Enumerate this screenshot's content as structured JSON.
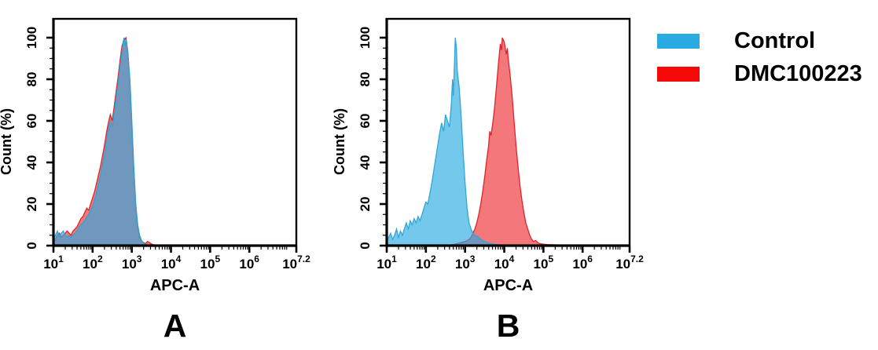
{
  "figure": {
    "panels": [
      {
        "id": "A",
        "label": "A",
        "xlabel": "APC-A",
        "ylabel": "Count (%)"
      },
      {
        "id": "B",
        "label": "B",
        "xlabel": "APC-A",
        "ylabel": "Count (%)"
      }
    ],
    "legend": {
      "items": [
        {
          "label": "Control",
          "color": "#29abe2"
        },
        {
          "label": "DMC100223",
          "color": "#f60909"
        }
      ]
    }
  },
  "chart_data": [
    {
      "type": "area",
      "panel": "A",
      "title": "",
      "xlabel": "APC-A",
      "ylabel": "Count (%)",
      "x_scale": "log10",
      "x_domain_exponents": [
        1,
        7.2
      ],
      "x_major_tick_exponents": [
        "1",
        "2",
        "3",
        "4",
        "5",
        "6",
        "7.2"
      ],
      "ylim": [
        0,
        100
      ],
      "y_ticks": [
        0,
        20,
        40,
        60,
        80,
        100
      ],
      "y_minor_step": 5,
      "grid": false,
      "legend_position": "outside-right",
      "series": [
        {
          "name": "DMC100223",
          "stroke": "#e01b22",
          "fill": "#ed1c24",
          "fill_opacity": 0.6,
          "points": [
            [
              1.0,
              2
            ],
            [
              1.05,
              3
            ],
            [
              1.1,
              5
            ],
            [
              1.15,
              6
            ],
            [
              1.2,
              4
            ],
            [
              1.25,
              5
            ],
            [
              1.3,
              6
            ],
            [
              1.35,
              7
            ],
            [
              1.4,
              6
            ],
            [
              1.45,
              5
            ],
            [
              1.5,
              7
            ],
            [
              1.55,
              8
            ],
            [
              1.6,
              9
            ],
            [
              1.65,
              11
            ],
            [
              1.7,
              13
            ],
            [
              1.75,
              14
            ],
            [
              1.8,
              16
            ],
            [
              1.85,
              18
            ],
            [
              1.9,
              17
            ],
            [
              1.95,
              20
            ],
            [
              2.0,
              23
            ],
            [
              2.05,
              26
            ],
            [
              2.1,
              30
            ],
            [
              2.15,
              34
            ],
            [
              2.2,
              38
            ],
            [
              2.25,
              43
            ],
            [
              2.3,
              48
            ],
            [
              2.35,
              54
            ],
            [
              2.4,
              59
            ],
            [
              2.45,
              63
            ],
            [
              2.5,
              60
            ],
            [
              2.55,
              67
            ],
            [
              2.6,
              74
            ],
            [
              2.65,
              81
            ],
            [
              2.7,
              89
            ],
            [
              2.75,
              96
            ],
            [
              2.8,
              99
            ],
            [
              2.85,
              100
            ],
            [
              2.9,
              93
            ],
            [
              2.95,
              79
            ],
            [
              3.0,
              58
            ],
            [
              3.05,
              36
            ],
            [
              3.1,
              19
            ],
            [
              3.15,
              9
            ],
            [
              3.2,
              4
            ],
            [
              3.25,
              2
            ],
            [
              3.3,
              1.5
            ],
            [
              3.35,
              1
            ],
            [
              3.4,
              2
            ],
            [
              3.45,
              1.5
            ],
            [
              3.5,
              0.8
            ],
            [
              3.55,
              0.4
            ],
            [
              3.6,
              0.3
            ],
            [
              3.7,
              0.2
            ],
            [
              3.8,
              0.1
            ],
            [
              3.9,
              0
            ]
          ]
        },
        {
          "name": "Control",
          "stroke": "#2ba3d4",
          "fill": "#29abe2",
          "fill_opacity": 0.65,
          "points": [
            [
              1.0,
              3
            ],
            [
              1.05,
              5
            ],
            [
              1.1,
              7
            ],
            [
              1.15,
              4
            ],
            [
              1.2,
              6
            ],
            [
              1.25,
              7
            ],
            [
              1.3,
              5
            ],
            [
              1.35,
              4
            ],
            [
              1.4,
              5
            ],
            [
              1.45,
              4
            ],
            [
              1.5,
              5
            ],
            [
              1.55,
              6
            ],
            [
              1.6,
              7
            ],
            [
              1.65,
              9
            ],
            [
              1.7,
              10
            ],
            [
              1.75,
              11
            ],
            [
              1.8,
              12
            ],
            [
              1.85,
              14
            ],
            [
              1.9,
              15
            ],
            [
              1.95,
              17
            ],
            [
              2.0,
              19
            ],
            [
              2.05,
              22
            ],
            [
              2.1,
              26
            ],
            [
              2.15,
              30
            ],
            [
              2.2,
              34
            ],
            [
              2.25,
              39
            ],
            [
              2.3,
              44
            ],
            [
              2.35,
              50
            ],
            [
              2.4,
              56
            ],
            [
              2.45,
              60
            ],
            [
              2.5,
              57
            ],
            [
              2.55,
              64
            ],
            [
              2.6,
              71
            ],
            [
              2.65,
              78
            ],
            [
              2.7,
              86
            ],
            [
              2.75,
              93
            ],
            [
              2.78,
              98
            ],
            [
              2.8,
              100
            ],
            [
              2.83,
              96
            ],
            [
              2.86,
              99
            ],
            [
              2.9,
              92
            ],
            [
              2.95,
              80
            ],
            [
              3.0,
              60
            ],
            [
              3.05,
              38
            ],
            [
              3.1,
              20
            ],
            [
              3.15,
              10
            ],
            [
              3.2,
              5
            ],
            [
              3.25,
              2.5
            ],
            [
              3.3,
              1.2
            ],
            [
              3.35,
              0.6
            ],
            [
              3.4,
              0.3
            ],
            [
              3.5,
              0.1
            ],
            [
              3.6,
              0
            ]
          ]
        }
      ]
    },
    {
      "type": "area",
      "panel": "B",
      "title": "",
      "xlabel": "APC-A",
      "ylabel": "Count (%)",
      "x_scale": "log10",
      "x_domain_exponents": [
        1,
        7.2
      ],
      "x_major_tick_exponents": [
        "1",
        "2",
        "3",
        "4",
        "5",
        "6",
        "7.2"
      ],
      "ylim": [
        0,
        100
      ],
      "y_ticks": [
        0,
        20,
        40,
        60,
        80,
        100
      ],
      "y_minor_step": 5,
      "grid": false,
      "legend_position": "outside-right",
      "series": [
        {
          "name": "DMC100223",
          "stroke": "#e01b22",
          "fill": "#ed1c24",
          "fill_opacity": 0.6,
          "points": [
            [
              2.6,
              0.3
            ],
            [
              2.7,
              0.5
            ],
            [
              2.8,
              1
            ],
            [
              2.9,
              1.5
            ],
            [
              3.0,
              2
            ],
            [
              3.05,
              2.5
            ],
            [
              3.1,
              3
            ],
            [
              3.15,
              4
            ],
            [
              3.2,
              6
            ],
            [
              3.25,
              8
            ],
            [
              3.3,
              11
            ],
            [
              3.35,
              15
            ],
            [
              3.4,
              20
            ],
            [
              3.45,
              26
            ],
            [
              3.5,
              33
            ],
            [
              3.55,
              41
            ],
            [
              3.6,
              48
            ],
            [
              3.63,
              55
            ],
            [
              3.66,
              53
            ],
            [
              3.7,
              58
            ],
            [
              3.75,
              66
            ],
            [
              3.8,
              76
            ],
            [
              3.85,
              87
            ],
            [
              3.88,
              93
            ],
            [
              3.9,
              97
            ],
            [
              3.93,
              94
            ],
            [
              3.95,
              100
            ],
            [
              4.0,
              98
            ],
            [
              4.05,
              92
            ],
            [
              4.08,
              95
            ],
            [
              4.1,
              90
            ],
            [
              4.15,
              82
            ],
            [
              4.2,
              72
            ],
            [
              4.25,
              60
            ],
            [
              4.3,
              48
            ],
            [
              4.35,
              38
            ],
            [
              4.4,
              29
            ],
            [
              4.45,
              22
            ],
            [
              4.5,
              16
            ],
            [
              4.55,
              11
            ],
            [
              4.6,
              8
            ],
            [
              4.65,
              5
            ],
            [
              4.7,
              3
            ],
            [
              4.75,
              2
            ],
            [
              4.8,
              2.5
            ],
            [
              4.85,
              1.5
            ],
            [
              4.9,
              1
            ],
            [
              5.0,
              0.7
            ],
            [
              5.1,
              0.5
            ],
            [
              5.2,
              0.4
            ],
            [
              5.4,
              0.3
            ],
            [
              5.6,
              0.2
            ],
            [
              5.8,
              0.1
            ],
            [
              6.0,
              0
            ]
          ]
        },
        {
          "name": "Control",
          "stroke": "#2ba3d4",
          "fill": "#29abe2",
          "fill_opacity": 0.65,
          "points": [
            [
              1.0,
              2
            ],
            [
              1.05,
              4
            ],
            [
              1.1,
              6
            ],
            [
              1.15,
              3
            ],
            [
              1.2,
              5
            ],
            [
              1.25,
              8
            ],
            [
              1.3,
              4
            ],
            [
              1.35,
              7
            ],
            [
              1.4,
              5
            ],
            [
              1.45,
              8
            ],
            [
              1.5,
              11
            ],
            [
              1.55,
              8
            ],
            [
              1.6,
              12
            ],
            [
              1.65,
              10
            ],
            [
              1.7,
              13
            ],
            [
              1.75,
              11
            ],
            [
              1.8,
              14
            ],
            [
              1.85,
              12
            ],
            [
              1.9,
              15
            ],
            [
              1.95,
              18
            ],
            [
              2.0,
              21
            ],
            [
              2.05,
              20
            ],
            [
              2.1,
              25
            ],
            [
              2.15,
              30
            ],
            [
              2.2,
              36
            ],
            [
              2.25,
              42
            ],
            [
              2.3,
              48
            ],
            [
              2.35,
              54
            ],
            [
              2.4,
              59
            ],
            [
              2.45,
              55
            ],
            [
              2.5,
              63
            ],
            [
              2.55,
              60
            ],
            [
              2.6,
              57
            ],
            [
              2.65,
              68
            ],
            [
              2.68,
              80
            ],
            [
              2.7,
              72
            ],
            [
              2.73,
              88
            ],
            [
              2.75,
              100
            ],
            [
              2.78,
              95
            ],
            [
              2.8,
              84
            ],
            [
              2.85,
              76
            ],
            [
              2.9,
              62
            ],
            [
              2.95,
              45
            ],
            [
              3.0,
              30
            ],
            [
              3.05,
              18
            ],
            [
              3.1,
              11
            ],
            [
              3.15,
              8
            ],
            [
              3.2,
              6
            ],
            [
              3.25,
              5
            ],
            [
              3.3,
              4.5
            ],
            [
              3.35,
              4
            ],
            [
              3.4,
              3
            ],
            [
              3.45,
              2.5
            ],
            [
              3.5,
              2
            ],
            [
              3.55,
              1.5
            ],
            [
              3.6,
              1.2
            ],
            [
              3.7,
              0.8
            ],
            [
              3.8,
              0.5
            ],
            [
              3.9,
              0.3
            ],
            [
              4.0,
              0
            ]
          ]
        }
      ]
    }
  ]
}
